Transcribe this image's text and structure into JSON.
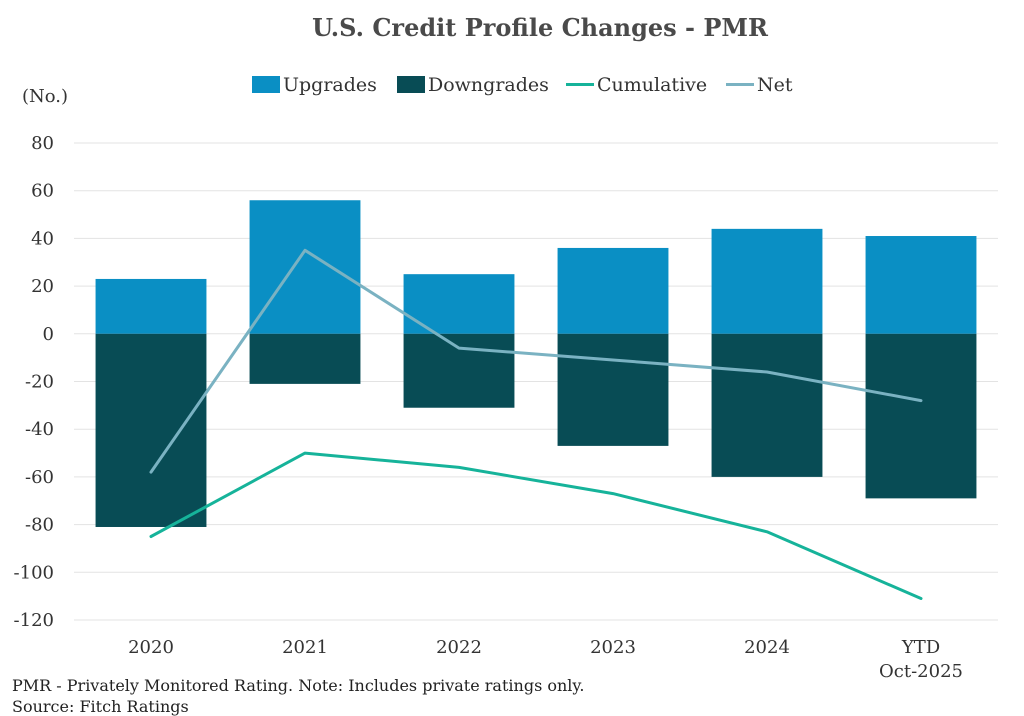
{
  "chart_data": {
    "type": "bar",
    "title": "U.S. Credit Profile Changes - PMR",
    "ylabel": "(No.)",
    "xlabel": "",
    "ylim": [
      -120,
      80
    ],
    "yticks": [
      80,
      60,
      40,
      20,
      0,
      -20,
      -40,
      -60,
      -80,
      -100,
      -120
    ],
    "grid": true,
    "legend_position": "top-center",
    "categories": [
      [
        "2020"
      ],
      [
        "2021"
      ],
      [
        "2022"
      ],
      [
        "2023"
      ],
      [
        "2024"
      ],
      [
        "YTD",
        "Oct-2025"
      ]
    ],
    "series": [
      {
        "name": "Upgrades",
        "kind": "bar",
        "color": "#0a8fc4",
        "values": [
          23,
          56,
          25,
          36,
          44,
          41
        ]
      },
      {
        "name": "Downgrades",
        "kind": "bar",
        "color": "#084c55",
        "values": [
          -81,
          -21,
          -31,
          -47,
          -60,
          -69
        ]
      },
      {
        "name": "Cumulative",
        "kind": "line",
        "color": "#16b39a",
        "values": [
          -85,
          -50,
          -56,
          -67,
          -83,
          -111
        ]
      },
      {
        "name": "Net",
        "kind": "line",
        "color": "#7ab2c2",
        "values": [
          -58,
          35,
          -6,
          -11,
          -16,
          -28
        ]
      }
    ]
  },
  "footnotes": {
    "note": "PMR - Privately Monitored Rating. Note: Includes private ratings only.",
    "source": "Source: Fitch Ratings"
  }
}
